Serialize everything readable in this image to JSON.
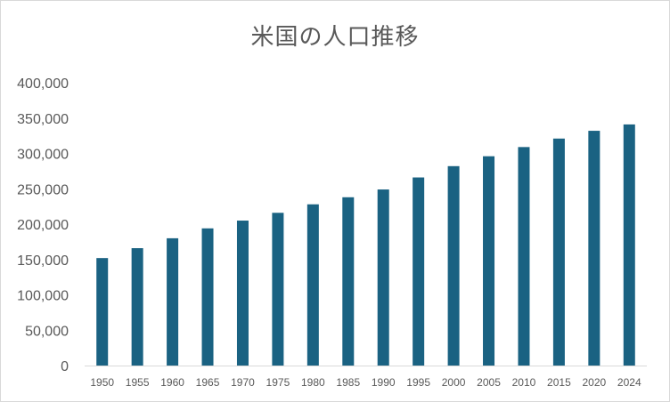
{
  "chart_data": {
    "type": "bar",
    "title": "米国の人口推移",
    "categories": [
      "1950",
      "1955",
      "1960",
      "1965",
      "1970",
      "1975",
      "1980",
      "1985",
      "1990",
      "1995",
      "2000",
      "2005",
      "2010",
      "2015",
      "2020",
      "2024"
    ],
    "values": [
      152000,
      166000,
      180000,
      194000,
      205000,
      216000,
      228000,
      238000,
      249000,
      266000,
      282000,
      296000,
      309000,
      321000,
      332000,
      341000
    ],
    "ylim": [
      0,
      400000
    ],
    "yticks": [
      {
        "value": 0,
        "label": "0"
      },
      {
        "value": 50000,
        "label": "50,000"
      },
      {
        "value": 100000,
        "label": "100,000"
      },
      {
        "value": 150000,
        "label": "150,000"
      },
      {
        "value": 200000,
        "label": "200,000"
      },
      {
        "value": 250000,
        "label": "250,000"
      },
      {
        "value": 300000,
        "label": "300,000"
      },
      {
        "value": 350000,
        "label": "350,000"
      },
      {
        "value": 400000,
        "label": "400,000"
      }
    ],
    "xlabel": "",
    "ylabel": "",
    "grid": false,
    "legend": "none",
    "bar_color": "#1a6282",
    "axis_color": "#d9d9d9"
  }
}
